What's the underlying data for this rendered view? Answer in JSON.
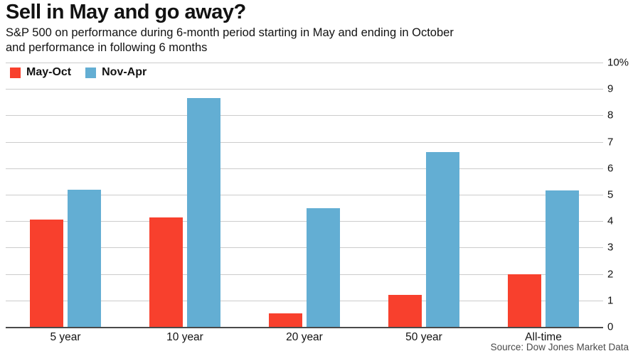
{
  "header": {
    "title": "Sell in May and go away?",
    "subtitle_line1": "S&P 500 on performance during 6-month period starting in May and ending in October",
    "subtitle_line2": "and performance in following 6 months"
  },
  "chart_data": {
    "type": "bar",
    "categories": [
      "5 year",
      "10 year",
      "20 year",
      "50 year",
      "All-time"
    ],
    "series": [
      {
        "name": "May-Oct",
        "color": "#f8402d",
        "values": [
          4.05,
          4.15,
          0.5,
          1.2,
          2.0
        ]
      },
      {
        "name": "Nov-Apr",
        "color": "#63aed3",
        "values": [
          5.2,
          8.65,
          4.5,
          6.6,
          5.15
        ]
      }
    ],
    "ylabel": "",
    "xlabel": "",
    "ylim": [
      0,
      10
    ],
    "yticks": [
      0,
      1,
      2,
      3,
      4,
      5,
      6,
      7,
      8,
      9,
      10
    ],
    "ytick_top_label": "10%",
    "grid": true,
    "legend_position": "top-left"
  },
  "footer": {
    "source": "Source: Dow Jones Market Data"
  }
}
